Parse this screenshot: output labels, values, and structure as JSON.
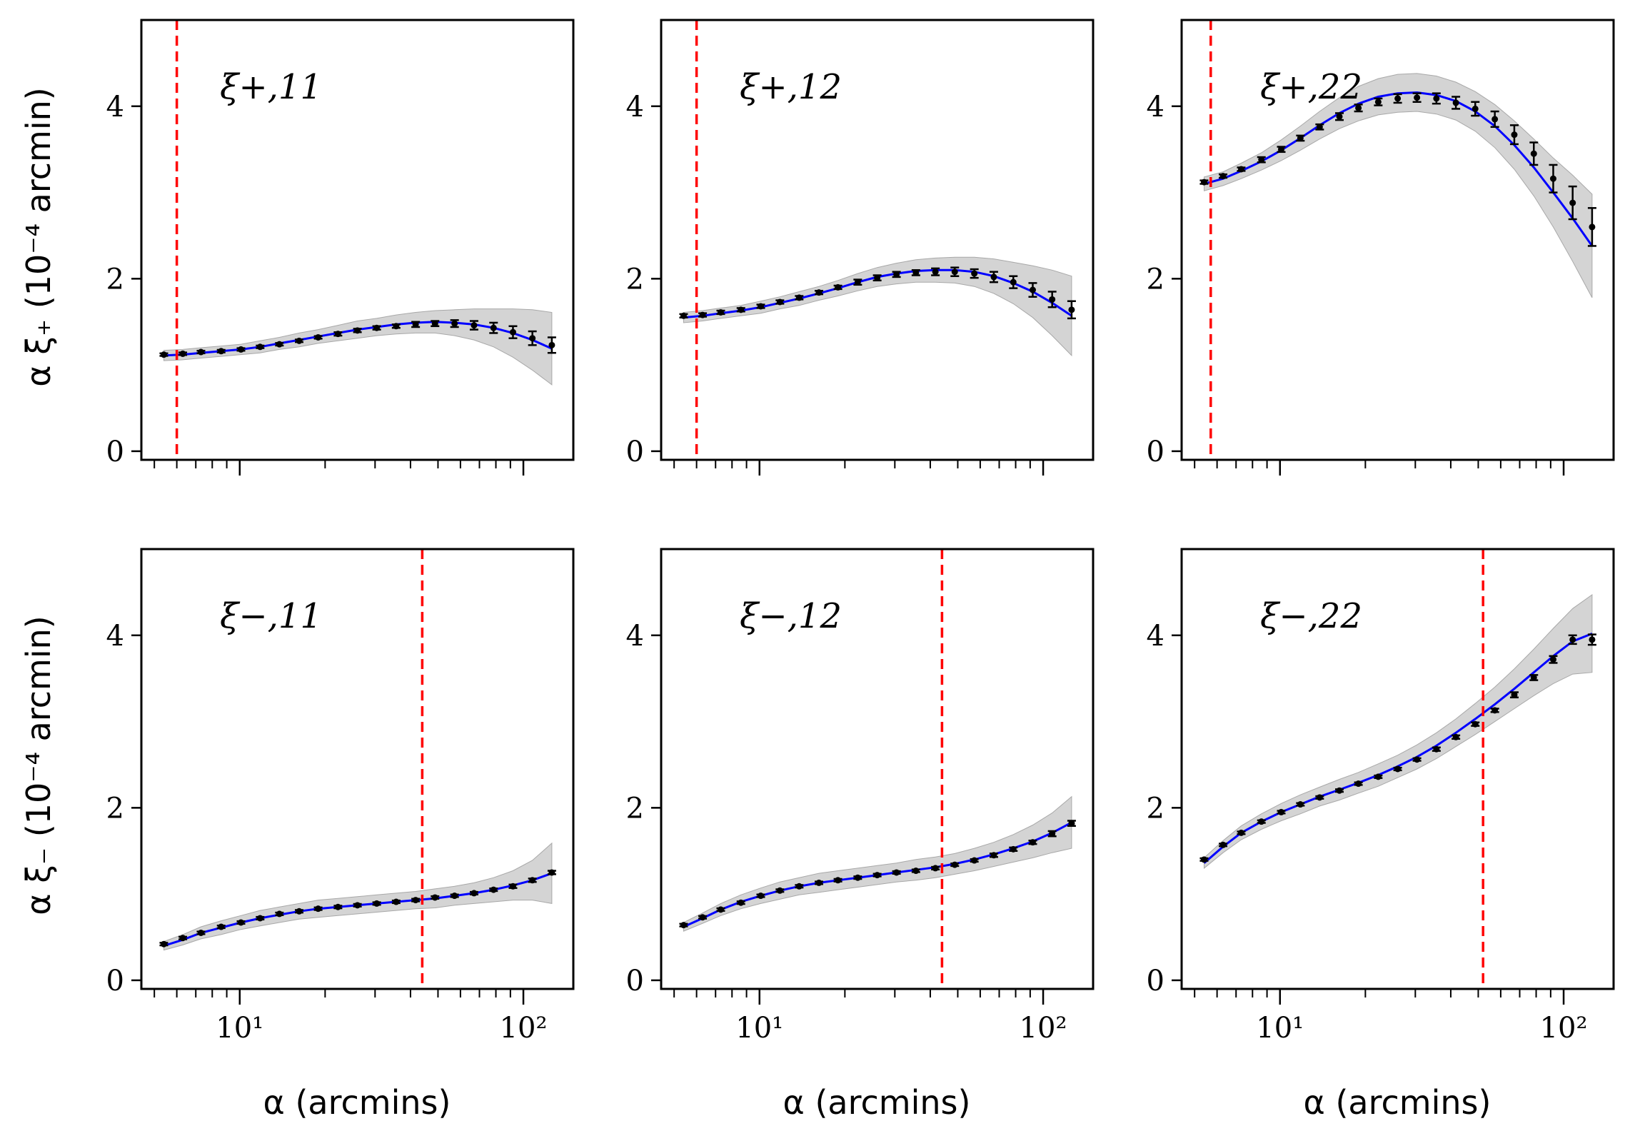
{
  "ylabels": {
    "top": "α ξ₊ (10⁻⁴ arcmin)",
    "bottom": "α ξ₋ (10⁻⁴ arcmin)"
  },
  "xlabel": "α (arcmins)",
  "xticks": [
    {
      "value": 10,
      "label": "10¹"
    },
    {
      "value": 100,
      "label": "10²"
    }
  ],
  "yticks": [
    {
      "value": 0,
      "label": "0"
    },
    {
      "value": 2,
      "label": "2"
    },
    {
      "value": 4,
      "label": "4"
    }
  ],
  "colors": {
    "data": "#000000",
    "model": "#0000ff",
    "band": "#bdbdbd",
    "cut": "#ff0000"
  },
  "chart_data": [
    {
      "type": "line",
      "label": "ξ+,11",
      "row": 0,
      "col": 0,
      "xscale": "log",
      "xlim": [
        4.5,
        150
      ],
      "ylim": [
        -0.1,
        5
      ],
      "cut": 6.0,
      "x": [
        5.4,
        6.3,
        7.3,
        8.6,
        10.1,
        11.8,
        13.8,
        16.2,
        18.9,
        22.2,
        26.0,
        30.4,
        35.6,
        41.7,
        48.8,
        57.2,
        67.0,
        78.5,
        91.9,
        107.6,
        126.0
      ],
      "y": [
        1.12,
        1.13,
        1.15,
        1.16,
        1.18,
        1.21,
        1.24,
        1.28,
        1.32,
        1.36,
        1.4,
        1.43,
        1.45,
        1.47,
        1.48,
        1.48,
        1.46,
        1.43,
        1.38,
        1.31,
        1.23
      ],
      "yerr": [
        0.01,
        0.01,
        0.01,
        0.01,
        0.01,
        0.01,
        0.01,
        0.01,
        0.01,
        0.02,
        0.02,
        0.02,
        0.02,
        0.03,
        0.03,
        0.04,
        0.05,
        0.06,
        0.07,
        0.08,
        0.09
      ],
      "model": [
        1.11,
        1.12,
        1.14,
        1.16,
        1.18,
        1.21,
        1.25,
        1.29,
        1.33,
        1.37,
        1.41,
        1.44,
        1.47,
        1.49,
        1.5,
        1.49,
        1.47,
        1.43,
        1.37,
        1.29,
        1.19
      ],
      "band": [
        0.06,
        0.06,
        0.06,
        0.06,
        0.06,
        0.07,
        0.07,
        0.08,
        0.08,
        0.09,
        0.1,
        0.1,
        0.11,
        0.12,
        0.13,
        0.15,
        0.18,
        0.22,
        0.28,
        0.35,
        0.42
      ]
    },
    {
      "type": "line",
      "label": "ξ+,12",
      "row": 0,
      "col": 1,
      "xscale": "log",
      "xlim": [
        4.5,
        150
      ],
      "ylim": [
        -0.1,
        5
      ],
      "cut": 6.0,
      "x": [
        5.4,
        6.3,
        7.3,
        8.6,
        10.1,
        11.8,
        13.8,
        16.2,
        18.9,
        22.2,
        26.0,
        30.4,
        35.6,
        41.7,
        48.8,
        57.2,
        67.0,
        78.5,
        91.9,
        107.6,
        126.0
      ],
      "y": [
        1.57,
        1.58,
        1.61,
        1.64,
        1.68,
        1.73,
        1.78,
        1.84,
        1.9,
        1.96,
        2.01,
        2.05,
        2.07,
        2.08,
        2.08,
        2.06,
        2.02,
        1.96,
        1.87,
        1.76,
        1.64
      ],
      "yerr": [
        0.02,
        0.02,
        0.02,
        0.02,
        0.02,
        0.02,
        0.02,
        0.02,
        0.02,
        0.03,
        0.03,
        0.03,
        0.03,
        0.04,
        0.05,
        0.05,
        0.06,
        0.07,
        0.08,
        0.09,
        0.1
      ],
      "model": [
        1.55,
        1.57,
        1.6,
        1.63,
        1.67,
        1.72,
        1.77,
        1.83,
        1.89,
        1.96,
        2.02,
        2.06,
        2.09,
        2.1,
        2.1,
        2.08,
        2.03,
        1.95,
        1.85,
        1.72,
        1.57
      ],
      "band": [
        0.06,
        0.06,
        0.06,
        0.06,
        0.07,
        0.07,
        0.08,
        0.08,
        0.09,
        0.1,
        0.11,
        0.12,
        0.13,
        0.14,
        0.15,
        0.17,
        0.2,
        0.24,
        0.3,
        0.38,
        0.46
      ]
    },
    {
      "type": "line",
      "label": "ξ+,22",
      "row": 0,
      "col": 2,
      "xscale": "log",
      "xlim": [
        4.5,
        150
      ],
      "ylim": [
        -0.1,
        5
      ],
      "cut": 5.7,
      "x": [
        5.4,
        6.3,
        7.3,
        8.6,
        10.1,
        11.8,
        13.8,
        16.2,
        18.9,
        22.2,
        26.0,
        30.4,
        35.6,
        41.7,
        48.8,
        57.2,
        67.0,
        78.5,
        91.9,
        107.6,
        126.0
      ],
      "y": [
        3.12,
        3.19,
        3.27,
        3.38,
        3.5,
        3.63,
        3.76,
        3.88,
        3.98,
        4.05,
        4.09,
        4.1,
        4.09,
        4.04,
        3.97,
        3.85,
        3.67,
        3.45,
        3.16,
        2.88,
        2.6
      ],
      "yerr": [
        0.02,
        0.02,
        0.02,
        0.03,
        0.03,
        0.03,
        0.03,
        0.04,
        0.04,
        0.04,
        0.05,
        0.05,
        0.06,
        0.07,
        0.08,
        0.09,
        0.11,
        0.13,
        0.16,
        0.19,
        0.22
      ],
      "model": [
        3.1,
        3.16,
        3.25,
        3.36,
        3.49,
        3.63,
        3.78,
        3.92,
        4.03,
        4.11,
        4.15,
        4.16,
        4.13,
        4.06,
        3.94,
        3.77,
        3.55,
        3.29,
        3.0,
        2.7,
        2.38
      ],
      "band": [
        0.08,
        0.08,
        0.09,
        0.1,
        0.12,
        0.14,
        0.16,
        0.18,
        0.2,
        0.21,
        0.22,
        0.22,
        0.22,
        0.22,
        0.23,
        0.25,
        0.28,
        0.33,
        0.4,
        0.5,
        0.6
      ]
    },
    {
      "type": "line",
      "label": "ξ−,11",
      "row": 1,
      "col": 0,
      "xscale": "log",
      "xlim": [
        4.5,
        150
      ],
      "ylim": [
        -0.1,
        5
      ],
      "cut": 44.0,
      "x": [
        5.4,
        6.3,
        7.3,
        8.6,
        10.1,
        11.8,
        13.8,
        16.2,
        18.9,
        22.2,
        26.0,
        30.4,
        35.6,
        41.7,
        48.8,
        57.2,
        67.0,
        78.5,
        91.9,
        107.6,
        126.0
      ],
      "y": [
        0.42,
        0.49,
        0.55,
        0.62,
        0.67,
        0.72,
        0.77,
        0.8,
        0.83,
        0.85,
        0.87,
        0.89,
        0.91,
        0.93,
        0.96,
        0.98,
        1.01,
        1.05,
        1.09,
        1.16,
        1.25
      ],
      "yerr": [
        0.01,
        0.01,
        0.01,
        0.01,
        0.01,
        0.01,
        0.01,
        0.01,
        0.01,
        0.01,
        0.01,
        0.01,
        0.01,
        0.01,
        0.01,
        0.01,
        0.01,
        0.01,
        0.02,
        0.02,
        0.02
      ],
      "model": [
        0.4,
        0.47,
        0.55,
        0.61,
        0.67,
        0.72,
        0.76,
        0.8,
        0.83,
        0.85,
        0.87,
        0.89,
        0.91,
        0.93,
        0.95,
        0.98,
        1.01,
        1.05,
        1.1,
        1.16,
        1.24
      ],
      "band": [
        0.05,
        0.06,
        0.07,
        0.08,
        0.08,
        0.09,
        0.09,
        0.09,
        0.1,
        0.1,
        0.1,
        0.1,
        0.1,
        0.1,
        0.11,
        0.11,
        0.12,
        0.14,
        0.17,
        0.23,
        0.35
      ]
    },
    {
      "type": "line",
      "label": "ξ−,12",
      "row": 1,
      "col": 1,
      "xscale": "log",
      "xlim": [
        4.5,
        150
      ],
      "ylim": [
        -0.1,
        5
      ],
      "cut": 44.0,
      "x": [
        5.4,
        6.3,
        7.3,
        8.6,
        10.1,
        11.8,
        13.8,
        16.2,
        18.9,
        22.2,
        26.0,
        30.4,
        35.6,
        41.7,
        48.8,
        57.2,
        67.0,
        78.5,
        91.9,
        107.6,
        126.0
      ],
      "y": [
        0.64,
        0.73,
        0.82,
        0.9,
        0.98,
        1.04,
        1.09,
        1.13,
        1.16,
        1.19,
        1.22,
        1.25,
        1.27,
        1.3,
        1.34,
        1.39,
        1.45,
        1.52,
        1.6,
        1.7,
        1.82
      ],
      "yerr": [
        0.01,
        0.01,
        0.01,
        0.01,
        0.01,
        0.01,
        0.01,
        0.01,
        0.01,
        0.01,
        0.01,
        0.01,
        0.01,
        0.01,
        0.01,
        0.01,
        0.02,
        0.02,
        0.02,
        0.03,
        0.03
      ],
      "model": [
        0.62,
        0.72,
        0.82,
        0.91,
        0.98,
        1.04,
        1.09,
        1.13,
        1.16,
        1.19,
        1.22,
        1.25,
        1.28,
        1.31,
        1.35,
        1.4,
        1.46,
        1.53,
        1.61,
        1.71,
        1.83
      ],
      "band": [
        0.05,
        0.06,
        0.07,
        0.08,
        0.09,
        0.1,
        0.1,
        0.11,
        0.11,
        0.11,
        0.11,
        0.11,
        0.12,
        0.12,
        0.12,
        0.13,
        0.14,
        0.16,
        0.19,
        0.23,
        0.3
      ]
    },
    {
      "type": "line",
      "label": "ξ−,22",
      "row": 1,
      "col": 2,
      "xscale": "log",
      "xlim": [
        4.5,
        150
      ],
      "ylim": [
        -0.1,
        5
      ],
      "cut": 52.0,
      "x": [
        5.4,
        6.3,
        7.3,
        8.6,
        10.1,
        11.8,
        13.8,
        16.2,
        18.9,
        22.2,
        26.0,
        30.4,
        35.6,
        41.7,
        48.8,
        57.2,
        67.0,
        78.5,
        91.9,
        107.6,
        126.0
      ],
      "y": [
        1.4,
        1.57,
        1.71,
        1.84,
        1.95,
        2.04,
        2.12,
        2.2,
        2.28,
        2.36,
        2.45,
        2.56,
        2.68,
        2.82,
        2.97,
        3.13,
        3.31,
        3.51,
        3.72,
        3.95,
        3.95
      ],
      "yerr": [
        0.01,
        0.01,
        0.01,
        0.01,
        0.01,
        0.01,
        0.01,
        0.01,
        0.01,
        0.01,
        0.01,
        0.01,
        0.02,
        0.02,
        0.02,
        0.02,
        0.03,
        0.03,
        0.04,
        0.05,
        0.06
      ],
      "model": [
        1.36,
        1.55,
        1.71,
        1.84,
        1.95,
        2.04,
        2.13,
        2.21,
        2.29,
        2.38,
        2.48,
        2.59,
        2.72,
        2.87,
        3.03,
        3.2,
        3.38,
        3.57,
        3.76,
        3.93,
        4.02
      ],
      "band": [
        0.06,
        0.07,
        0.08,
        0.09,
        0.1,
        0.11,
        0.11,
        0.12,
        0.12,
        0.13,
        0.13,
        0.14,
        0.15,
        0.16,
        0.18,
        0.2,
        0.23,
        0.27,
        0.32,
        0.38,
        0.45
      ]
    }
  ]
}
